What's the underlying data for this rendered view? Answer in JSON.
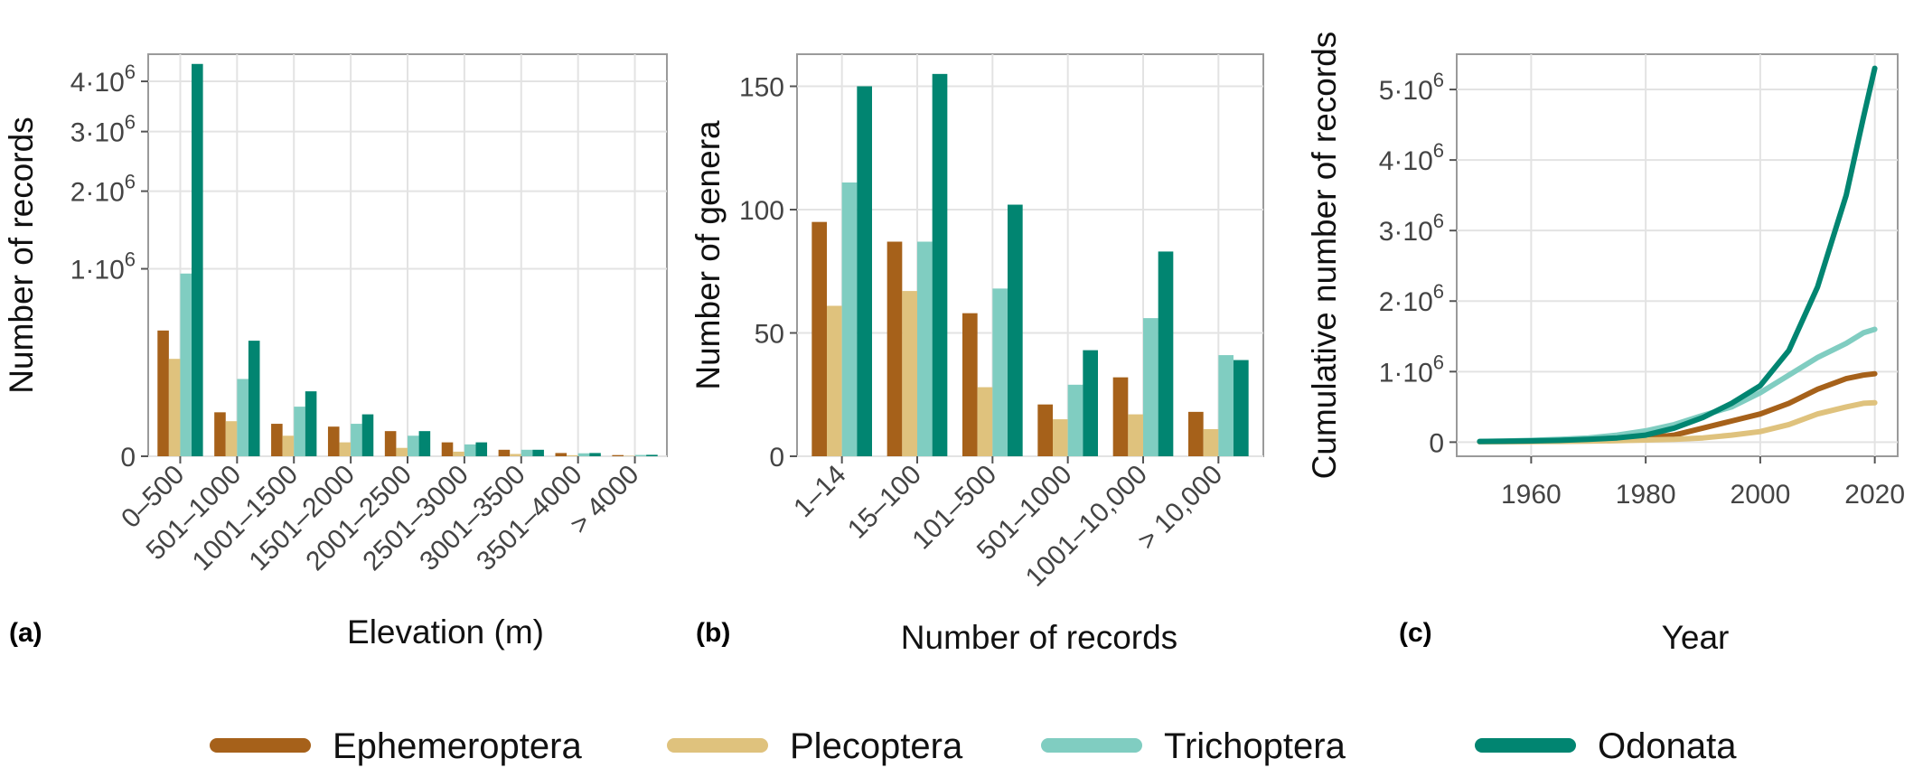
{
  "series_colors": {
    "Ephemeroptera": "#A6611A",
    "Plecoptera": "#DFC27D",
    "Trichoptera": "#80CDC1",
    "Odonata": "#018571"
  },
  "legend": [
    "Ephemeroptera",
    "Plecoptera",
    "Trichoptera",
    "Odonata"
  ],
  "chart_data": [
    {
      "panel": "(a)",
      "type": "bar",
      "xlabel": "Elevation (m)",
      "ylabel": "Number of records",
      "y_scale": "sqrt",
      "ylim": [
        0,
        4600000
      ],
      "y_ticks": [
        {
          "value": 0,
          "label": "0"
        },
        {
          "value": 1000000,
          "label": "1·10",
          "exp": "6"
        },
        {
          "value": 2000000,
          "label": "2·10",
          "exp": "6"
        },
        {
          "value": 3000000,
          "label": "3·10",
          "exp": "6"
        },
        {
          "value": 4000000,
          "label": "4·10",
          "exp": "6"
        }
      ],
      "categories": [
        "0–500",
        "501–1000",
        "1001–1500",
        "1501–2000",
        "2001–2500",
        "2501–3000",
        "3001–3500",
        "3501–4000",
        "> 4000"
      ],
      "series": [
        {
          "name": "Ephemeroptera",
          "values": [
            450000,
            55000,
            30000,
            25000,
            18000,
            5500,
            1200,
            300,
            40
          ]
        },
        {
          "name": "Plecoptera",
          "values": [
            270000,
            35000,
            12000,
            5500,
            2000,
            600,
            150,
            30,
            5
          ]
        },
        {
          "name": "Trichoptera",
          "values": [
            950000,
            170000,
            70000,
            30000,
            12000,
            4000,
            1200,
            250,
            50
          ]
        },
        {
          "name": "Odonata",
          "values": [
            4380000,
            380000,
            120000,
            50000,
            18000,
            5500,
            1200,
            300,
            60
          ]
        }
      ],
      "grid": true
    },
    {
      "panel": "(b)",
      "type": "bar",
      "xlabel": "Number of records",
      "ylabel": "Number of genera",
      "ylim": [
        0,
        163
      ],
      "y_ticks": [
        {
          "value": 0,
          "label": "0"
        },
        {
          "value": 50,
          "label": "50"
        },
        {
          "value": 100,
          "label": "100"
        },
        {
          "value": 150,
          "label": "150"
        }
      ],
      "categories": [
        "1–14",
        "15–100",
        "101–500",
        "501–1000",
        "1001–10,000",
        "> 10,000"
      ],
      "series": [
        {
          "name": "Ephemeroptera",
          "values": [
            95,
            87,
            58,
            21,
            32,
            18
          ]
        },
        {
          "name": "Plecoptera",
          "values": [
            61,
            67,
            28,
            15,
            17,
            11
          ]
        },
        {
          "name": "Trichoptera",
          "values": [
            111,
            87,
            68,
            29,
            56,
            41
          ]
        },
        {
          "name": "Odonata",
          "values": [
            150,
            155,
            102,
            43,
            83,
            39
          ]
        }
      ],
      "grid": true
    },
    {
      "panel": "(c)",
      "type": "line",
      "xlabel": "Year",
      "ylabel": "Cumulative number of records",
      "xlim": [
        1947,
        2024
      ],
      "ylim": [
        -200000,
        5500000
      ],
      "x_ticks": [
        1960,
        1980,
        2000,
        2020
      ],
      "y_ticks": [
        {
          "value": 0,
          "label": "0"
        },
        {
          "value": 1000000,
          "label": "1·10",
          "exp": "6"
        },
        {
          "value": 2000000,
          "label": "2·10",
          "exp": "6"
        },
        {
          "value": 3000000,
          "label": "3·10",
          "exp": "6"
        },
        {
          "value": 4000000,
          "label": "4·10",
          "exp": "6"
        },
        {
          "value": 5000000,
          "label": "5·10",
          "exp": "6"
        }
      ],
      "x": [
        1951,
        1955,
        1960,
        1965,
        1970,
        1975,
        1980,
        1985,
        1990,
        1995,
        2000,
        2005,
        2010,
        2015,
        2018,
        2020
      ],
      "series": [
        {
          "name": "Ephemeroptera",
          "values": [
            5000,
            8000,
            10000,
            15000,
            20000,
            35000,
            60000,
            100000,
            200000,
            300000,
            400000,
            550000,
            750000,
            900000,
            950000,
            970000
          ]
        },
        {
          "name": "Plecoptera",
          "values": [
            5000,
            6000,
            8000,
            10000,
            15000,
            20000,
            30000,
            40000,
            60000,
            100000,
            150000,
            250000,
            400000,
            500000,
            550000,
            560000
          ]
        },
        {
          "name": "Trichoptera",
          "values": [
            10000,
            15000,
            25000,
            40000,
            60000,
            100000,
            160000,
            250000,
            380000,
            500000,
            700000,
            950000,
            1200000,
            1400000,
            1550000,
            1600000
          ]
        },
        {
          "name": "Odonata",
          "values": [
            10000,
            12000,
            18000,
            25000,
            40000,
            60000,
            100000,
            200000,
            350000,
            550000,
            800000,
            1300000,
            2200000,
            3500000,
            4600000,
            5300000
          ]
        }
      ],
      "grid": true
    }
  ]
}
